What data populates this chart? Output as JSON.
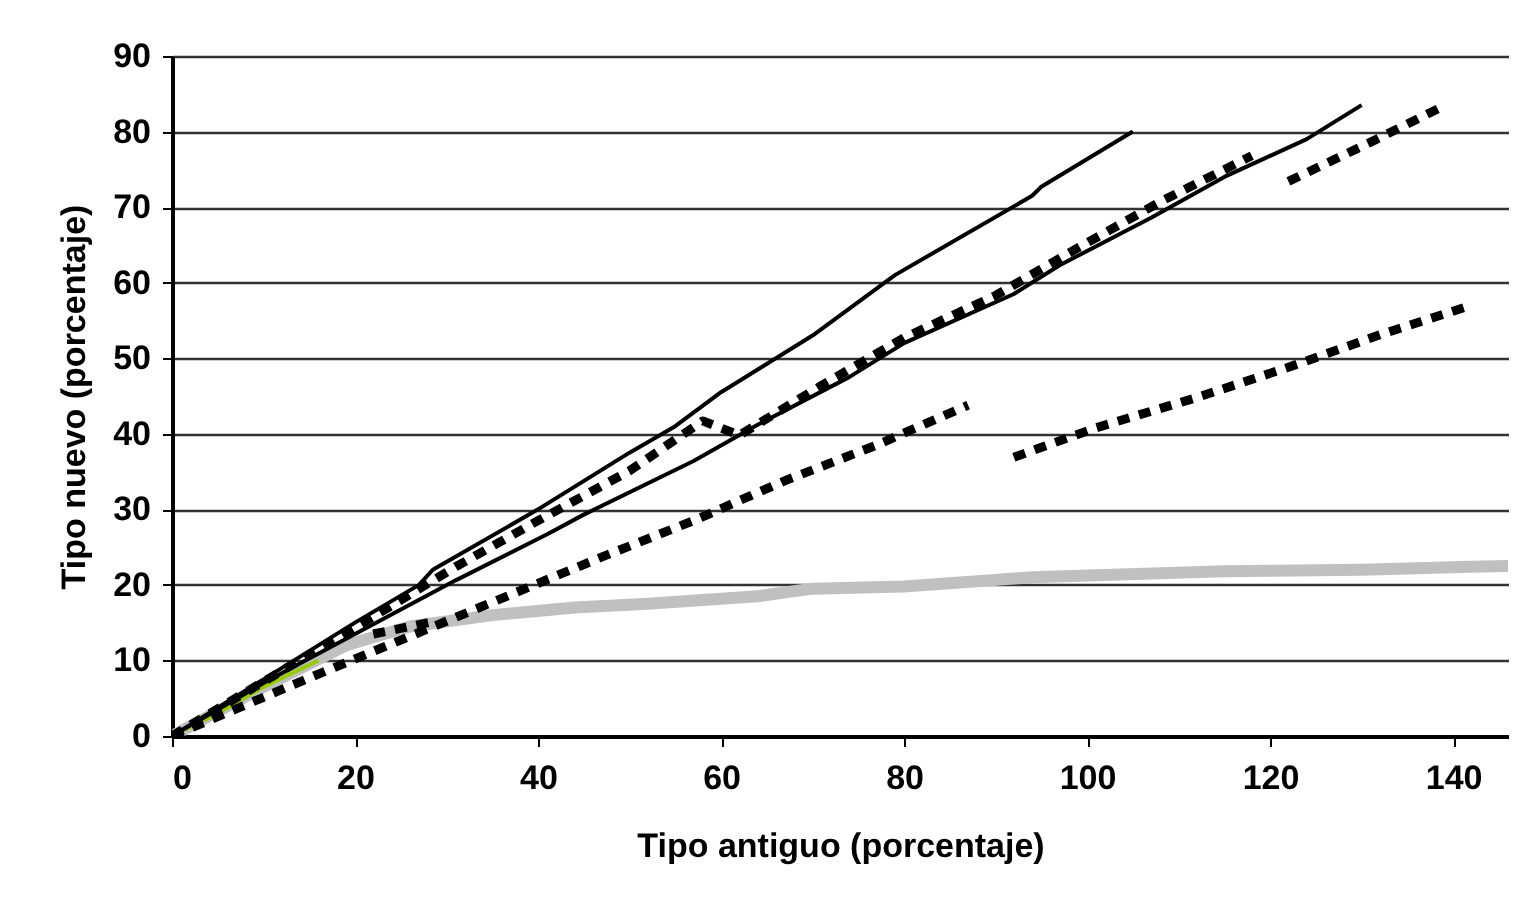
{
  "chart_data": {
    "type": "line",
    "xlabel": "Tipo antiguo (porcentaje)",
    "ylabel": "Tipo nuevo (porcentaje)",
    "xlim": [
      0,
      146
    ],
    "ylim": [
      0,
      90
    ],
    "xticks": [
      0,
      20,
      40,
      60,
      80,
      100,
      120,
      140
    ],
    "yticks": [
      0,
      10,
      20,
      30,
      40,
      50,
      60,
      70,
      80,
      90
    ],
    "grid": "y",
    "series": [
      {
        "color": "#c0c0c0",
        "line_style": "solid",
        "x": [
          0,
          10,
          19,
          26,
          35,
          44,
          52,
          64,
          70,
          80,
          94,
          115,
          130,
          142,
          146
        ],
        "values": [
          0,
          6.5,
          12,
          14.5,
          16,
          17,
          17.5,
          18.5,
          19.5,
          19.8,
          21,
          21.8,
          22,
          22.4,
          22.5
        ]
      },
      {
        "color": "#99cc00",
        "line_style": "solid",
        "x": [
          0,
          5,
          10,
          16
        ],
        "values": [
          0,
          3,
          6.5,
          10
        ]
      },
      {
        "color": "#000000",
        "line_style": "solid",
        "x": [
          0,
          10,
          20,
          27,
          28.5,
          40,
          50,
          55,
          60,
          70,
          79,
          94,
          95,
          105
        ],
        "values": [
          0,
          7.5,
          15,
          20,
          22,
          30,
          37.5,
          41,
          45.5,
          53,
          61,
          71.5,
          72.7,
          80
        ]
      },
      {
        "color": "#000000",
        "line_style": "solid",
        "x": [
          0,
          10,
          20,
          31,
          41,
          45,
          57,
          64,
          74,
          80,
          92,
          97,
          107,
          115,
          124,
          130
        ],
        "values": [
          0,
          7,
          13.5,
          20.6,
          26.7,
          29.3,
          36.4,
          41.2,
          47.5,
          52,
          58.5,
          62.3,
          68.6,
          74,
          79,
          83.5
        ]
      },
      {
        "color": "#000000",
        "line_style": "dashed",
        "x": [
          0,
          22,
          31,
          40,
          50,
          58,
          62,
          71,
          80,
          90,
          99,
          108,
          118
        ],
        "values": [
          0,
          15.8,
          22.4,
          28.5,
          35.1,
          41.7,
          39.8,
          46.4,
          52.7,
          58.3,
          64.6,
          70.7,
          76.8
        ]
      },
      {
        "color": "#000000",
        "line_style": "dashed",
        "x": [
          0,
          16,
          37,
          47,
          57,
          67,
          77,
          87
        ],
        "values": [
          0,
          8.2,
          18.7,
          23.7,
          28.5,
          33.8,
          38.5,
          43.8
        ]
      },
      {
        "color": "#000000",
        "line_style": "dashed",
        "x": [
          92,
          101,
          112,
          122,
          132,
          142
        ],
        "values": [
          36.9,
          40.8,
          44.8,
          48.8,
          53.1,
          57
        ]
      },
      {
        "color": "#000000",
        "line_style": "dashed",
        "x": [
          122,
          131,
          139
        ],
        "values": [
          73.4,
          78.6,
          83.4
        ]
      },
      {
        "color": "#000000",
        "line_style": "dashed",
        "x": [
          22,
          28
        ],
        "values": [
          13.5,
          15
        ]
      }
    ]
  }
}
